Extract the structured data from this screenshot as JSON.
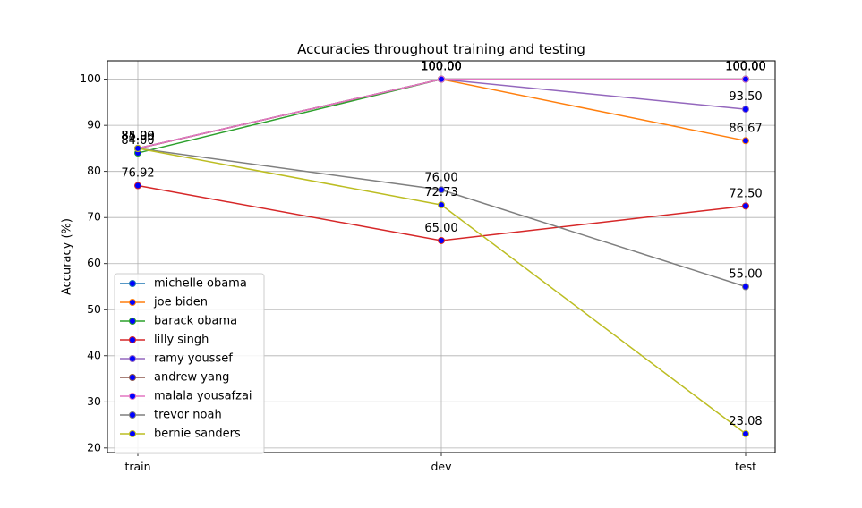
{
  "chart_data": {
    "type": "line",
    "title": "Accuracies throughout training and testing",
    "xlabel": "",
    "ylabel": "Accuracy (%)",
    "categories": [
      "train",
      "dev",
      "test"
    ],
    "ylim": [
      19,
      104
    ],
    "yticks": [
      20,
      30,
      40,
      50,
      60,
      70,
      80,
      90,
      100
    ],
    "grid": true,
    "legend_position": "lower-left",
    "marker_color": "#0000ff",
    "series": [
      {
        "name": "michelle obama",
        "color": "#1f77b4",
        "values": [
          85.0,
          100.0,
          100.0
        ],
        "labels": [
          "85.00",
          "100.00",
          "100.00"
        ]
      },
      {
        "name": "joe biden",
        "color": "#ff7f0e",
        "values": [
          85.0,
          100.0,
          86.67
        ],
        "labels": [
          "85.00",
          "100.00",
          "86.67"
        ]
      },
      {
        "name": "barack obama",
        "color": "#2ca02c",
        "values": [
          84.0,
          100.0,
          100.0
        ],
        "labels": [
          "84.00",
          "100.00",
          "100.00"
        ]
      },
      {
        "name": "lilly singh",
        "color": "#d62728",
        "values": [
          76.92,
          65.0,
          72.5
        ],
        "labels": [
          "76.92",
          "65.00",
          "72.50"
        ]
      },
      {
        "name": "ramy youssef",
        "color": "#9467bd",
        "values": [
          85.0,
          100.0,
          93.5
        ],
        "labels": [
          "85.00",
          "100.00",
          "93.50"
        ]
      },
      {
        "name": "andrew yang",
        "color": "#8c564b",
        "values": [
          84.96,
          100.0,
          100.0
        ],
        "labels": [
          "84.96",
          "100.00",
          "100.00"
        ]
      },
      {
        "name": "malala yousafzai",
        "color": "#e377c2",
        "values": [
          85.0,
          100.0,
          100.0
        ],
        "labels": [
          "85.00",
          "100.00",
          "100.00"
        ]
      },
      {
        "name": "trevor noah",
        "color": "#7f7f7f",
        "values": [
          85.0,
          76.0,
          55.0
        ],
        "labels": [
          "85.00",
          "76.00",
          "55.00"
        ]
      },
      {
        "name": "bernie sanders",
        "color": "#bcbd22",
        "values": [
          85.0,
          72.73,
          23.08
        ],
        "labels": [
          "85.00",
          "72.73",
          "23.08"
        ]
      }
    ]
  }
}
